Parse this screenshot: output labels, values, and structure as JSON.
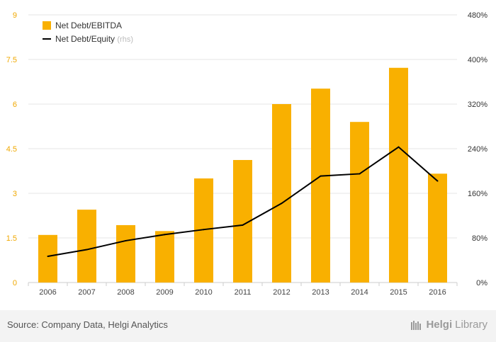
{
  "colors": {
    "bar": "#f9b000",
    "line": "#000000",
    "left_axis_text": "#f0a800",
    "right_axis_text": "#333333",
    "x_axis_text": "#444444",
    "grid": "#e6e6e6",
    "rhs_note": "#bbbbbb"
  },
  "chart_data": {
    "type": "bar",
    "categories": [
      "2006",
      "2007",
      "2008",
      "2009",
      "2010",
      "2011",
      "2012",
      "2013",
      "2014",
      "2015",
      "2016"
    ],
    "series": [
      {
        "name": "Net Debt/EBITDA",
        "type": "bar",
        "axis": "left",
        "values": [
          1.6,
          2.45,
          1.93,
          1.73,
          3.5,
          4.12,
          6.0,
          6.52,
          5.4,
          7.22,
          3.66
        ]
      },
      {
        "name": "Net Debt/Equity",
        "name_suffix": "(rhs)",
        "type": "line",
        "axis": "right",
        "values": [
          47,
          59,
          75,
          86,
          95,
          103,
          142,
          191,
          195,
          243,
          182
        ]
      }
    ],
    "y_left": {
      "ylim": [
        0,
        9
      ],
      "ticks": [
        "0",
        "1.5",
        "3",
        "4.5",
        "6",
        "7.5",
        "9"
      ]
    },
    "y_right": {
      "ylim": [
        0,
        480
      ],
      "ticks": [
        "0%",
        "80%",
        "160%",
        "240%",
        "320%",
        "400%",
        "480%"
      ]
    },
    "grid": true,
    "legend_position": "top-left"
  },
  "footer": {
    "source": "Source: Company Data, Helgi Analytics",
    "brand_bold": "Helgi",
    "brand_rest": "Library"
  }
}
